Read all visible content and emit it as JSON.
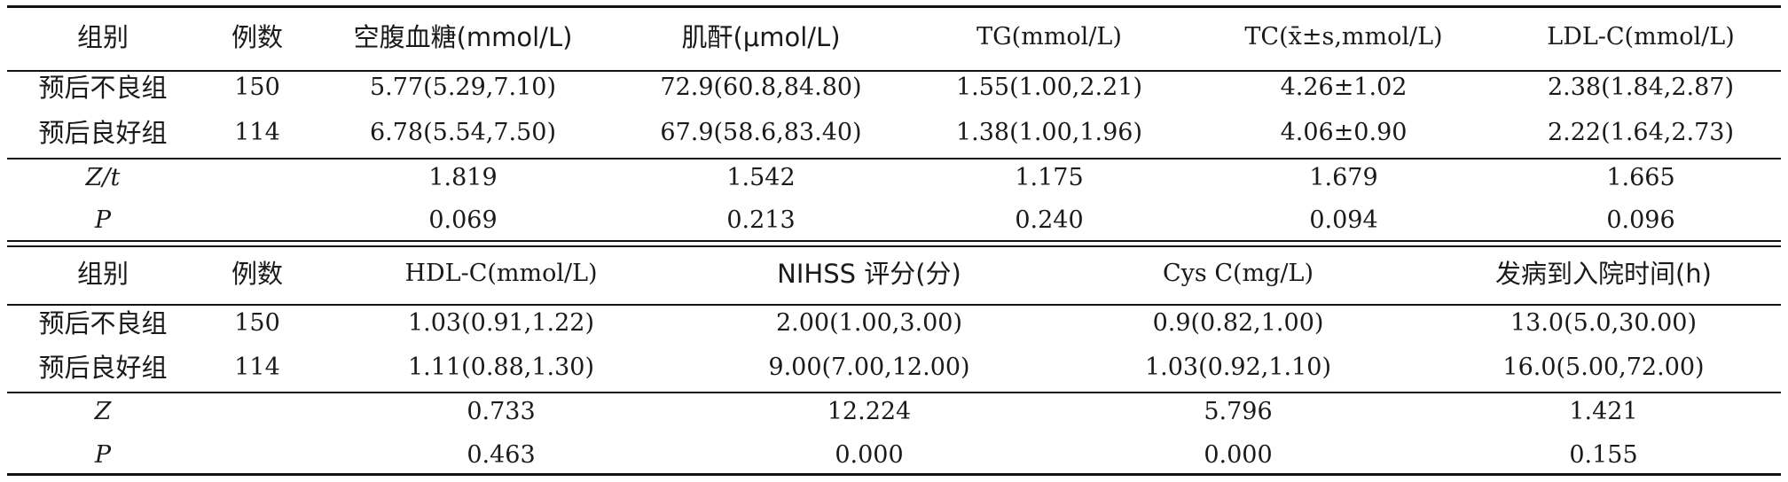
{
  "table1": {
    "headers": [
      "组别",
      "例数",
      "空腹血糖(mmol/L)",
      "肌酐(μmol/L)",
      "TG(mmol/L)",
      "TC(x̄±s,mmol/L)",
      "LDL-C(mmol/L)"
    ],
    "rows": [
      [
        "预后不良组",
        "150",
        "5.77(5.29,7.10)",
        "72.9(60.8,84.80)",
        "1.55(1.00,2.21)",
        "4.26±1.02",
        "2.38(1.84,2.87)"
      ],
      [
        "预后良好组",
        "114",
        "6.78(5.54,7.50)",
        "67.9(58.6,83.40)",
        "1.38(1.00,1.96)",
        "4.06±0.90",
        "2.22(1.64,2.73)"
      ]
    ],
    "stats": [
      [
        "Z/t",
        "1.819",
        "1.542",
        "1.175",
        "1.679",
        "1.665"
      ],
      [
        "P",
        "0.069",
        "0.213",
        "0.240",
        "0.094",
        "0.096"
      ]
    ]
  },
  "table2": {
    "headers": [
      "组别",
      "例数",
      "HDL-C(mmol/L)",
      "NIHSS 评分(分)",
      "Cys C(mg/L)",
      "发病到入院时间(h)"
    ],
    "rows": [
      [
        "预后不良组",
        "150",
        "1.03(0.91,1.22)",
        "2.00(1.00,3.00)",
        "0.9(0.82,1.00)",
        "13.0(5.0,30.00)"
      ],
      [
        "预后良好组",
        "114",
        "1.11(0.88,1.30)",
        "9.00(7.00,12.00)",
        "1.03(0.92,1.10)",
        "16.0(5.00,72.00)"
      ]
    ],
    "stats": [
      [
        "Z",
        "0.733",
        "12.224",
        "5.796",
        "1.421"
      ],
      [
        "P",
        "0.463",
        "0.000",
        "0.000",
        "0.155"
      ]
    ]
  }
}
